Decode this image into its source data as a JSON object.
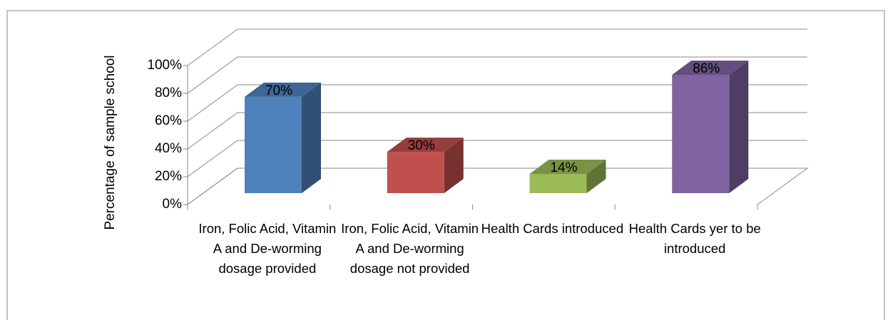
{
  "chart_data": {
    "type": "bar3d",
    "y_axis_label": "Percentage of sample school",
    "categories": [
      "Iron, Folic Acid, Vitamin A and De-worming dosage provided",
      "Iron, Folic Acid, Vitamin A and De-worming dosage not provided",
      "Health Cards introduced",
      "Health Cards yer to be introduced"
    ],
    "values": [
      70,
      30,
      14,
      86
    ],
    "value_labels": [
      "70%",
      "30%",
      "14%",
      "86%"
    ],
    "colors": [
      "#4f81bd",
      "#c0504d",
      "#9bbb59",
      "#8064a2"
    ],
    "ylim": [
      0,
      100
    ],
    "yticks": [
      {
        "value": 0,
        "label": "0%"
      },
      {
        "value": 20,
        "label": "20%"
      },
      {
        "value": 40,
        "label": "40%"
      },
      {
        "value": 60,
        "label": "60%"
      },
      {
        "value": 80,
        "label": "80%"
      },
      {
        "value": 100,
        "label": "100%"
      }
    ],
    "grid": true
  }
}
